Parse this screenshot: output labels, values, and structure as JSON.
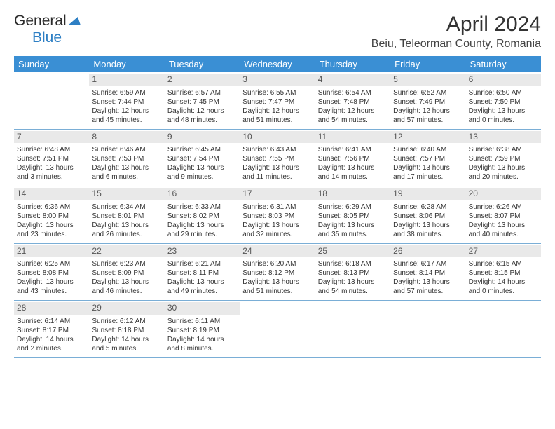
{
  "logo": {
    "text1": "General",
    "text2": "Blue"
  },
  "title": "April 2024",
  "location": "Beiu, Teleorman County, Romania",
  "colors": {
    "header_bg": "#3a8fd4",
    "daynum_bg": "#e9e9e9",
    "border": "#7aaed6"
  },
  "dayNames": [
    "Sunday",
    "Monday",
    "Tuesday",
    "Wednesday",
    "Thursday",
    "Friday",
    "Saturday"
  ],
  "weeks": [
    [
      {
        "blank": true
      },
      {
        "n": "1",
        "sr": "Sunrise: 6:59 AM",
        "ss": "Sunset: 7:44 PM",
        "dl": "Daylight: 12 hours and 45 minutes."
      },
      {
        "n": "2",
        "sr": "Sunrise: 6:57 AM",
        "ss": "Sunset: 7:45 PM",
        "dl": "Daylight: 12 hours and 48 minutes."
      },
      {
        "n": "3",
        "sr": "Sunrise: 6:55 AM",
        "ss": "Sunset: 7:47 PM",
        "dl": "Daylight: 12 hours and 51 minutes."
      },
      {
        "n": "4",
        "sr": "Sunrise: 6:54 AM",
        "ss": "Sunset: 7:48 PM",
        "dl": "Daylight: 12 hours and 54 minutes."
      },
      {
        "n": "5",
        "sr": "Sunrise: 6:52 AM",
        "ss": "Sunset: 7:49 PM",
        "dl": "Daylight: 12 hours and 57 minutes."
      },
      {
        "n": "6",
        "sr": "Sunrise: 6:50 AM",
        "ss": "Sunset: 7:50 PM",
        "dl": "Daylight: 13 hours and 0 minutes."
      }
    ],
    [
      {
        "n": "7",
        "sr": "Sunrise: 6:48 AM",
        "ss": "Sunset: 7:51 PM",
        "dl": "Daylight: 13 hours and 3 minutes."
      },
      {
        "n": "8",
        "sr": "Sunrise: 6:46 AM",
        "ss": "Sunset: 7:53 PM",
        "dl": "Daylight: 13 hours and 6 minutes."
      },
      {
        "n": "9",
        "sr": "Sunrise: 6:45 AM",
        "ss": "Sunset: 7:54 PM",
        "dl": "Daylight: 13 hours and 9 minutes."
      },
      {
        "n": "10",
        "sr": "Sunrise: 6:43 AM",
        "ss": "Sunset: 7:55 PM",
        "dl": "Daylight: 13 hours and 11 minutes."
      },
      {
        "n": "11",
        "sr": "Sunrise: 6:41 AM",
        "ss": "Sunset: 7:56 PM",
        "dl": "Daylight: 13 hours and 14 minutes."
      },
      {
        "n": "12",
        "sr": "Sunrise: 6:40 AM",
        "ss": "Sunset: 7:57 PM",
        "dl": "Daylight: 13 hours and 17 minutes."
      },
      {
        "n": "13",
        "sr": "Sunrise: 6:38 AM",
        "ss": "Sunset: 7:59 PM",
        "dl": "Daylight: 13 hours and 20 minutes."
      }
    ],
    [
      {
        "n": "14",
        "sr": "Sunrise: 6:36 AM",
        "ss": "Sunset: 8:00 PM",
        "dl": "Daylight: 13 hours and 23 minutes."
      },
      {
        "n": "15",
        "sr": "Sunrise: 6:34 AM",
        "ss": "Sunset: 8:01 PM",
        "dl": "Daylight: 13 hours and 26 minutes."
      },
      {
        "n": "16",
        "sr": "Sunrise: 6:33 AM",
        "ss": "Sunset: 8:02 PM",
        "dl": "Daylight: 13 hours and 29 minutes."
      },
      {
        "n": "17",
        "sr": "Sunrise: 6:31 AM",
        "ss": "Sunset: 8:03 PM",
        "dl": "Daylight: 13 hours and 32 minutes."
      },
      {
        "n": "18",
        "sr": "Sunrise: 6:29 AM",
        "ss": "Sunset: 8:05 PM",
        "dl": "Daylight: 13 hours and 35 minutes."
      },
      {
        "n": "19",
        "sr": "Sunrise: 6:28 AM",
        "ss": "Sunset: 8:06 PM",
        "dl": "Daylight: 13 hours and 38 minutes."
      },
      {
        "n": "20",
        "sr": "Sunrise: 6:26 AM",
        "ss": "Sunset: 8:07 PM",
        "dl": "Daylight: 13 hours and 40 minutes."
      }
    ],
    [
      {
        "n": "21",
        "sr": "Sunrise: 6:25 AM",
        "ss": "Sunset: 8:08 PM",
        "dl": "Daylight: 13 hours and 43 minutes."
      },
      {
        "n": "22",
        "sr": "Sunrise: 6:23 AM",
        "ss": "Sunset: 8:09 PM",
        "dl": "Daylight: 13 hours and 46 minutes."
      },
      {
        "n": "23",
        "sr": "Sunrise: 6:21 AM",
        "ss": "Sunset: 8:11 PM",
        "dl": "Daylight: 13 hours and 49 minutes."
      },
      {
        "n": "24",
        "sr": "Sunrise: 6:20 AM",
        "ss": "Sunset: 8:12 PM",
        "dl": "Daylight: 13 hours and 51 minutes."
      },
      {
        "n": "25",
        "sr": "Sunrise: 6:18 AM",
        "ss": "Sunset: 8:13 PM",
        "dl": "Daylight: 13 hours and 54 minutes."
      },
      {
        "n": "26",
        "sr": "Sunrise: 6:17 AM",
        "ss": "Sunset: 8:14 PM",
        "dl": "Daylight: 13 hours and 57 minutes."
      },
      {
        "n": "27",
        "sr": "Sunrise: 6:15 AM",
        "ss": "Sunset: 8:15 PM",
        "dl": "Daylight: 14 hours and 0 minutes."
      }
    ],
    [
      {
        "n": "28",
        "sr": "Sunrise: 6:14 AM",
        "ss": "Sunset: 8:17 PM",
        "dl": "Daylight: 14 hours and 2 minutes."
      },
      {
        "n": "29",
        "sr": "Sunrise: 6:12 AM",
        "ss": "Sunset: 8:18 PM",
        "dl": "Daylight: 14 hours and 5 minutes."
      },
      {
        "n": "30",
        "sr": "Sunrise: 6:11 AM",
        "ss": "Sunset: 8:19 PM",
        "dl": "Daylight: 14 hours and 8 minutes."
      },
      {
        "blank": true
      },
      {
        "blank": true
      },
      {
        "blank": true
      },
      {
        "blank": true
      }
    ]
  ]
}
